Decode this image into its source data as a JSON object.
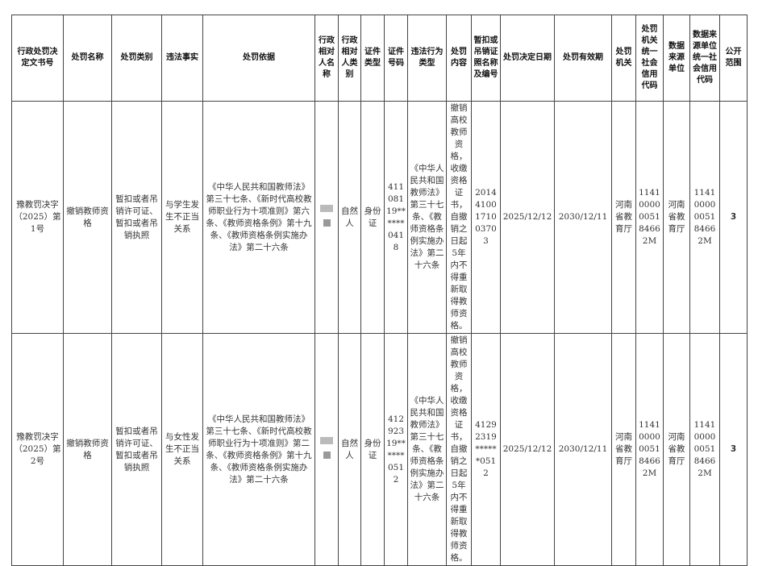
{
  "headers": [
    "行政处罚决定文书号",
    "处罚名称",
    "处罚类别",
    "违法事实",
    "处罚依据",
    "行政相对人名称",
    "行政相对人类别",
    "证件类型",
    "证件号码",
    "违法行为类型",
    "处罚内容",
    "暂扣或吊销证照名称及编号",
    "处罚决定日期",
    "处罚有效期",
    "处罚机关",
    "处罚机关统一社会信用代码",
    "数据来源单位",
    "数据来源单位统一社会信用代码",
    "公开范围"
  ],
  "rows": [
    {
      "doc_no": "豫教罚决字（2025）第1号",
      "name": "撤销教师资格",
      "category": "暂扣或者吊销许可证、暂扣或者吊销执照",
      "facts": "与学生发生不正当关系",
      "basis": "《中华人民共和国教师法》第三十七条、《新时代高校教师职业行为十项准则》第六条、《教师资格条例》第十九条、《教师资格条例实施办法》第二十六条",
      "party_type": "自然人",
      "id_type": "身份证",
      "id_no": "41108119******0418",
      "violation_type": "《中华人民共和国教师法》第三十七条、《教师资格条例实施办法》第二十六条",
      "content": "撤销高校教师资格，收缴资格证书，自撤销之日起5年内不得重新取得教师资格。",
      "license_no": "20144100171003703",
      "decision_date": "2025/12/12",
      "valid_until": "2030/12/11",
      "authority": "河南省教育厅",
      "authority_code": "11410000005184662M",
      "source": "河南省教育厅",
      "source_code": "11410000005184662M",
      "scope": "3"
    },
    {
      "doc_no": "豫教罚决字（2025）第2号",
      "name": "撤销教师资格",
      "category": "暂扣或者吊销许可证、暂扣或者吊销执照",
      "facts": "与女性发生不正当关系",
      "basis": "《中华人民共和国教师法》第三十七条、《新时代高校教师职业行为十项准则》第二条、《教师资格条例》第十九条、《教师资格条例实施办法》第二十六条",
      "party_type": "自然人",
      "id_type": "身份证",
      "id_no": "41292319******0512",
      "violation_type": "《中华人民共和国教师法》第三十七条、《教师资格条例实施办法》第二十六条",
      "content": "撤销高校教师资格，收缴资格证书，自撤销之日起5年内不得重新取得教师资格。",
      "license_no": "41292319******0512",
      "decision_date": "2025/12/12",
      "valid_until": "2030/12/11",
      "authority": "河南省教育厅",
      "authority_code": "11410000005184662M",
      "source": "河南省教育厅",
      "source_code": "11410000005184662M",
      "scope": "3"
    }
  ]
}
